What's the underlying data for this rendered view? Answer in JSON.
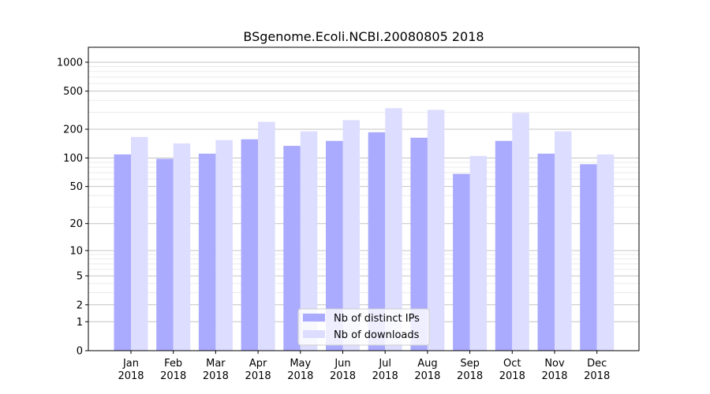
{
  "chart_data": {
    "type": "bar",
    "title": "BSgenome.Ecoli.NCBI.20080805 2018",
    "xlabel": "",
    "ylabel": "",
    "yscale": "log(1+x)",
    "ylim": [
      0,
      1400
    ],
    "yticks": [
      0,
      1,
      2,
      5,
      10,
      20,
      50,
      100,
      200,
      500,
      1000
    ],
    "grid": true,
    "legend_placement": "bottom-center",
    "categories": [
      "Jan\n2018",
      "Feb\n2018",
      "Mar\n2018",
      "Apr\n2018",
      "May\n2018",
      "Jun\n2018",
      "Jul\n2018",
      "Aug\n2018",
      "Sep\n2018",
      "Oct\n2018",
      "Nov\n2018",
      "Dec\n2018"
    ],
    "series": [
      {
        "name": "Nb of distinct IPs",
        "color": "#aaaaff",
        "values": [
          109,
          98,
          111,
          157,
          134,
          151,
          186,
          163,
          68,
          151,
          111,
          86
        ]
      },
      {
        "name": "Nb of downloads",
        "color": "#ddddff",
        "values": [
          166,
          142,
          154,
          239,
          190,
          249,
          332,
          319,
          105,
          296,
          190,
          109
        ]
      }
    ]
  }
}
